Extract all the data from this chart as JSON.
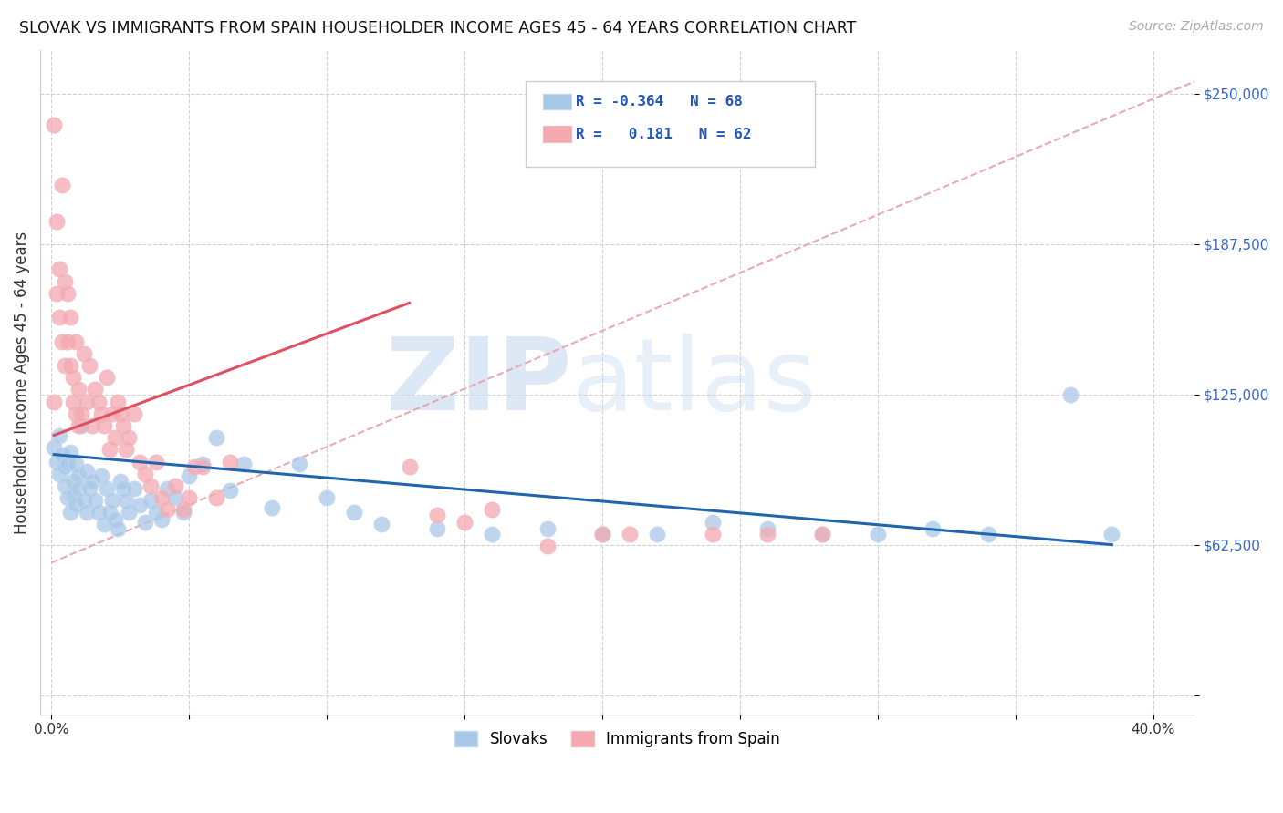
{
  "title": "SLOVAK VS IMMIGRANTS FROM SPAIN HOUSEHOLDER INCOME AGES 45 - 64 YEARS CORRELATION CHART",
  "source": "Source: ZipAtlas.com",
  "ylabel": "Householder Income Ages 45 - 64 years",
  "legend_label1": "Slovaks",
  "legend_label2": "Immigrants from Spain",
  "blue_color": "#a8c8e8",
  "pink_color": "#f4a8b0",
  "blue_line_color": "#2166ac",
  "pink_line_color": "#e05060",
  "dashed_line_color": "#e8a0a8",
  "background_color": "#ffffff",
  "xlim": [
    -0.004,
    0.415
  ],
  "ylim": [
    -8000,
    268000
  ],
  "y_ticks": [
    0,
    62500,
    125000,
    187500,
    250000
  ],
  "y_tick_labels": [
    "",
    "$62,500",
    "$125,000",
    "$187,500",
    "$250,000"
  ],
  "x_ticks": [
    0.0,
    0.05,
    0.1,
    0.15,
    0.2,
    0.25,
    0.3,
    0.35,
    0.4
  ],
  "x_tick_labels": [
    "0.0%",
    "",
    "",
    "",
    "",
    "",
    "",
    "",
    "40.0%"
  ],
  "slovaks_x": [
    0.001,
    0.002,
    0.003,
    0.003,
    0.004,
    0.005,
    0.005,
    0.006,
    0.006,
    0.007,
    0.007,
    0.008,
    0.008,
    0.009,
    0.009,
    0.01,
    0.01,
    0.011,
    0.012,
    0.013,
    0.013,
    0.014,
    0.015,
    0.016,
    0.017,
    0.018,
    0.019,
    0.02,
    0.021,
    0.022,
    0.023,
    0.024,
    0.025,
    0.026,
    0.027,
    0.028,
    0.03,
    0.032,
    0.034,
    0.036,
    0.038,
    0.04,
    0.042,
    0.045,
    0.048,
    0.05,
    0.055,
    0.06,
    0.065,
    0.07,
    0.08,
    0.09,
    0.1,
    0.11,
    0.12,
    0.14,
    0.16,
    0.18,
    0.2,
    0.22,
    0.24,
    0.26,
    0.28,
    0.3,
    0.32,
    0.34,
    0.37,
    0.385
  ],
  "slovaks_y": [
    103000,
    97000,
    92000,
    108000,
    100000,
    95000,
    87000,
    82000,
    96000,
    76000,
    101000,
    89000,
    83000,
    96000,
    79000,
    91000,
    86000,
    112000,
    81000,
    76000,
    93000,
    86000,
    89000,
    81000,
    76000,
    91000,
    71000,
    86000,
    76000,
    81000,
    73000,
    69000,
    89000,
    86000,
    81000,
    76000,
    86000,
    79000,
    72000,
    81000,
    76000,
    73000,
    86000,
    82000,
    76000,
    91000,
    96000,
    107000,
    85000,
    96000,
    78000,
    96000,
    82000,
    76000,
    71000,
    69000,
    67000,
    69000,
    67000,
    67000,
    72000,
    69000,
    67000,
    67000,
    69000,
    67000,
    125000,
    67000
  ],
  "spain_x": [
    0.001,
    0.001,
    0.002,
    0.002,
    0.003,
    0.003,
    0.004,
    0.004,
    0.005,
    0.005,
    0.006,
    0.006,
    0.007,
    0.007,
    0.008,
    0.008,
    0.009,
    0.009,
    0.01,
    0.01,
    0.011,
    0.012,
    0.013,
    0.014,
    0.015,
    0.016,
    0.017,
    0.018,
    0.019,
    0.02,
    0.021,
    0.022,
    0.023,
    0.024,
    0.025,
    0.026,
    0.027,
    0.028,
    0.03,
    0.032,
    0.034,
    0.036,
    0.038,
    0.04,
    0.042,
    0.045,
    0.048,
    0.05,
    0.052,
    0.055,
    0.06,
    0.065,
    0.13,
    0.14,
    0.15,
    0.16,
    0.18,
    0.2,
    0.21,
    0.24,
    0.26,
    0.28
  ],
  "spain_y": [
    122000,
    237000,
    197000,
    167000,
    157000,
    177000,
    212000,
    147000,
    172000,
    137000,
    167000,
    147000,
    137000,
    157000,
    122000,
    132000,
    147000,
    117000,
    112000,
    127000,
    117000,
    142000,
    122000,
    137000,
    112000,
    127000,
    122000,
    117000,
    112000,
    132000,
    102000,
    117000,
    107000,
    122000,
    117000,
    112000,
    102000,
    107000,
    117000,
    97000,
    92000,
    87000,
    97000,
    82000,
    77000,
    87000,
    77000,
    82000,
    95000,
    95000,
    82000,
    97000,
    95000,
    75000,
    72000,
    77000,
    62000,
    67000,
    67000,
    67000,
    67000,
    67000
  ],
  "dashed_line_x": [
    0.0,
    0.415
  ],
  "dashed_line_y": [
    55000,
    255000
  ],
  "blue_trend_x": [
    0.001,
    0.385
  ],
  "blue_trend_y": [
    100000,
    62500
  ],
  "pink_trend_x": [
    0.001,
    0.13
  ],
  "pink_trend_y": [
    108000,
    163000
  ]
}
